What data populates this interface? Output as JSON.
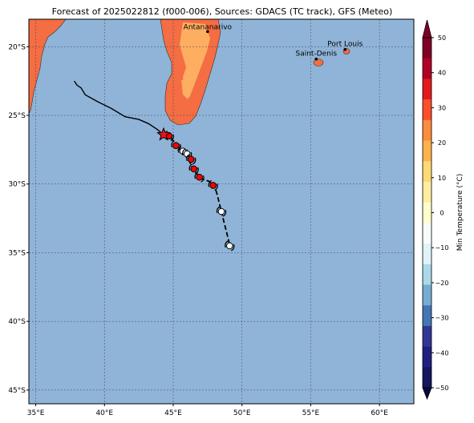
{
  "title": "Forecast of 2025022812 (f000-006), Sources: GDACS (TC track), GFS (Meteo)",
  "map": {
    "lon_range": [
      34.5,
      62.5
    ],
    "lat_range": [
      -46,
      -18
    ],
    "lon_ticks": [
      35,
      40,
      45,
      50,
      55,
      60
    ],
    "lat_ticks": [
      -20,
      -25,
      -30,
      -35,
      -40,
      -45
    ],
    "lon_tick_labels": [
      "35°E",
      "40°E",
      "45°E",
      "50°E",
      "55°E",
      "60°E"
    ],
    "lat_tick_labels": [
      "20°S",
      "25°S",
      "30°S",
      "35°S",
      "40°S",
      "45°S"
    ],
    "grid": true,
    "ocean_color": "#8fb4d8"
  },
  "cities": [
    {
      "name": "Antananarivo",
      "lon": 47.5,
      "lat": -18.9
    },
    {
      "name": "Port Louis",
      "lon": 57.5,
      "lat": -20.2
    },
    {
      "name": "Saint-Denis",
      "lon": 55.4,
      "lat": -20.9
    }
  ],
  "track": {
    "past": [
      [
        37.8,
        -22.5
      ],
      [
        38.0,
        -22.8
      ],
      [
        38.3,
        -23.0
      ],
      [
        38.6,
        -23.5
      ],
      [
        39.5,
        -24.0
      ],
      [
        40.5,
        -24.5
      ],
      [
        41.5,
        -25.1
      ],
      [
        42.5,
        -25.3
      ],
      [
        43.2,
        -25.6
      ],
      [
        43.8,
        -26.0
      ],
      [
        44.3,
        -26.4
      ]
    ],
    "current": {
      "lon": 44.3,
      "lat": -26.4,
      "marker": "star-icon"
    },
    "forecast": [
      [
        44.3,
        -26.4
      ],
      [
        44.8,
        -26.6
      ],
      [
        45.2,
        -27.1
      ],
      [
        45.5,
        -27.5
      ],
      [
        45.8,
        -27.8
      ],
      [
        46.2,
        -28.4
      ],
      [
        46.5,
        -29.0
      ],
      [
        47.0,
        -29.6
      ],
      [
        47.6,
        -29.8
      ],
      [
        48.0,
        -30.1
      ],
      [
        48.2,
        -30.8
      ],
      [
        48.5,
        -32.0
      ],
      [
        48.7,
        -32.8
      ],
      [
        48.9,
        -33.6
      ],
      [
        49.1,
        -34.4
      ]
    ],
    "symbols": [
      {
        "lon": 44.7,
        "lat": -26.5,
        "color": "#ff0000"
      },
      {
        "lon": 45.2,
        "lat": -27.2,
        "color": "#ff0000"
      },
      {
        "lon": 45.7,
        "lat": -27.6,
        "color": "#ffffff"
      },
      {
        "lon": 46.0,
        "lat": -27.8,
        "color": "#ffffff"
      },
      {
        "lon": 46.3,
        "lat": -28.2,
        "color": "#ff0000"
      },
      {
        "lon": 46.5,
        "lat": -28.9,
        "color": "#ff0000"
      },
      {
        "lon": 46.9,
        "lat": -29.5,
        "color": "#ff0000"
      },
      {
        "lon": 47.9,
        "lat": -30.1,
        "color": "#ff0000"
      },
      {
        "lon": 48.5,
        "lat": -32.0,
        "color": "#ffffff"
      },
      {
        "lon": 49.1,
        "lat": -34.5,
        "color": "#ffffff"
      }
    ]
  },
  "colorbar": {
    "label": "Min Temperature (°C)",
    "ticks": [
      50,
      40,
      30,
      20,
      10,
      0,
      -10,
      -20,
      -30,
      -40,
      -50
    ],
    "colors": [
      "#800026",
      "#b10026",
      "#e31a1c",
      "#fc4e2a",
      "#fd8d3c",
      "#feb24c",
      "#fed976",
      "#ffeda0",
      "#ffffcc",
      "#f7fcfd",
      "#e0f3f8",
      "#abd9e9",
      "#74add1",
      "#4575b4",
      "#313695",
      "#1f1f80",
      "#151560"
    ],
    "arrow_top": "#800026",
    "arrow_bottom": "#0a0a40"
  }
}
